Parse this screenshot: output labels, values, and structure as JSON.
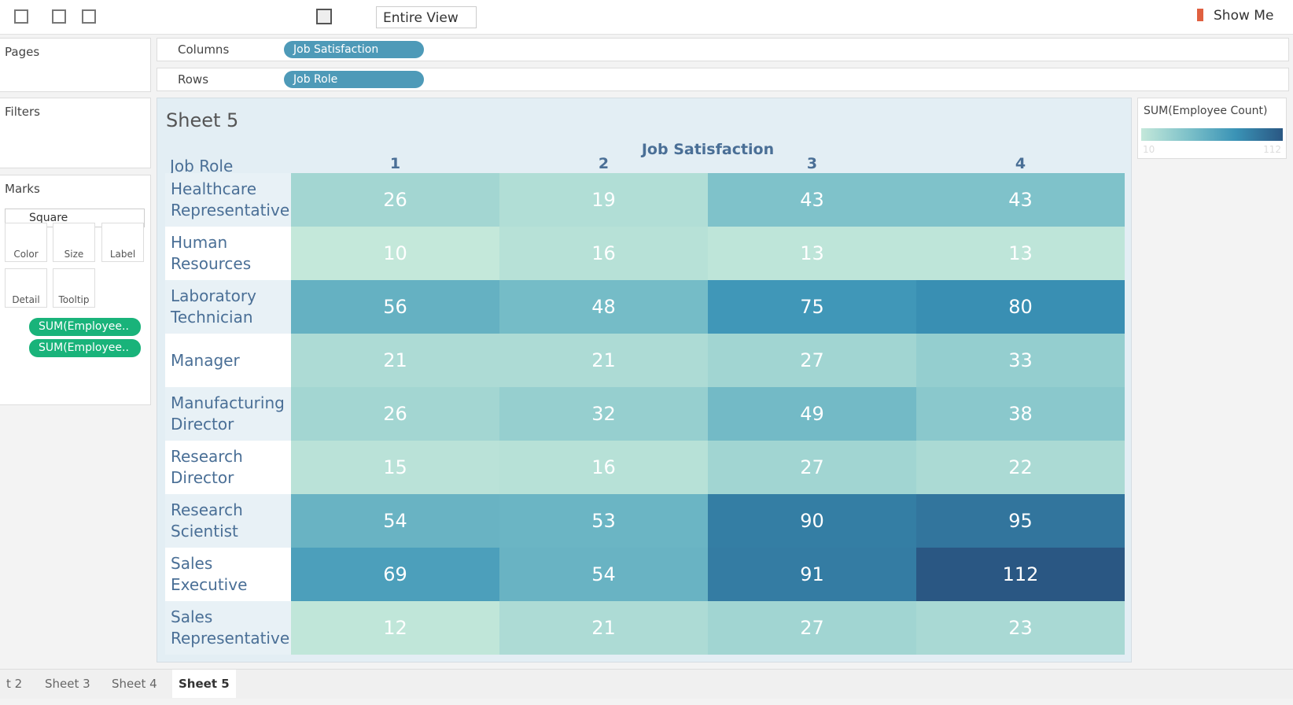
{
  "toolbar": {
    "view": "Entire View",
    "show_me": "Show Me"
  },
  "panels": {
    "pages": "Pages",
    "filters": "Filters",
    "marks": "Marks",
    "mark_type": "Square",
    "mark_buttons": [
      "Color",
      "Size",
      "Label",
      "Detail",
      "Tooltip"
    ],
    "mark_pills": [
      "SUM(Employee..",
      "SUM(Employee.."
    ]
  },
  "shelves": {
    "columns": {
      "label": "Columns",
      "pill": "Job Satisfaction"
    },
    "rows": {
      "label": "Rows",
      "pill": "Job Role"
    }
  },
  "chart_data": {
    "type": "heatmap",
    "title": "Sheet 5",
    "x_label": "Job Satisfaction",
    "y_label": "Job Role",
    "categories": [
      "1",
      "2",
      "3",
      "4"
    ],
    "rows": [
      "Healthcare Representative",
      "Human Resources",
      "Laboratory Technician",
      "Manager",
      "Manufacturing Director",
      "Research Director",
      "Research Scientist",
      "Sales Executive",
      "Sales Representative"
    ],
    "values": [
      [
        26,
        19,
        43,
        43
      ],
      [
        10,
        16,
        13,
        13
      ],
      [
        56,
        48,
        75,
        80
      ],
      [
        21,
        21,
        27,
        33
      ],
      [
        26,
        32,
        49,
        38
      ],
      [
        15,
        16,
        27,
        22
      ],
      [
        54,
        53,
        90,
        95
      ],
      [
        69,
        54,
        91,
        112
      ],
      [
        12,
        21,
        27,
        23
      ]
    ],
    "colorscale": {
      "title": "SUM(Employee Count)",
      "min": 10,
      "max": 112,
      "colors": [
        "#c4e8da",
        "#7dc1c9",
        "#3a93b6",
        "#2a5783"
      ]
    }
  },
  "tabs": [
    "t 2",
    "Sheet 3",
    "Sheet 4",
    "Sheet 5"
  ]
}
